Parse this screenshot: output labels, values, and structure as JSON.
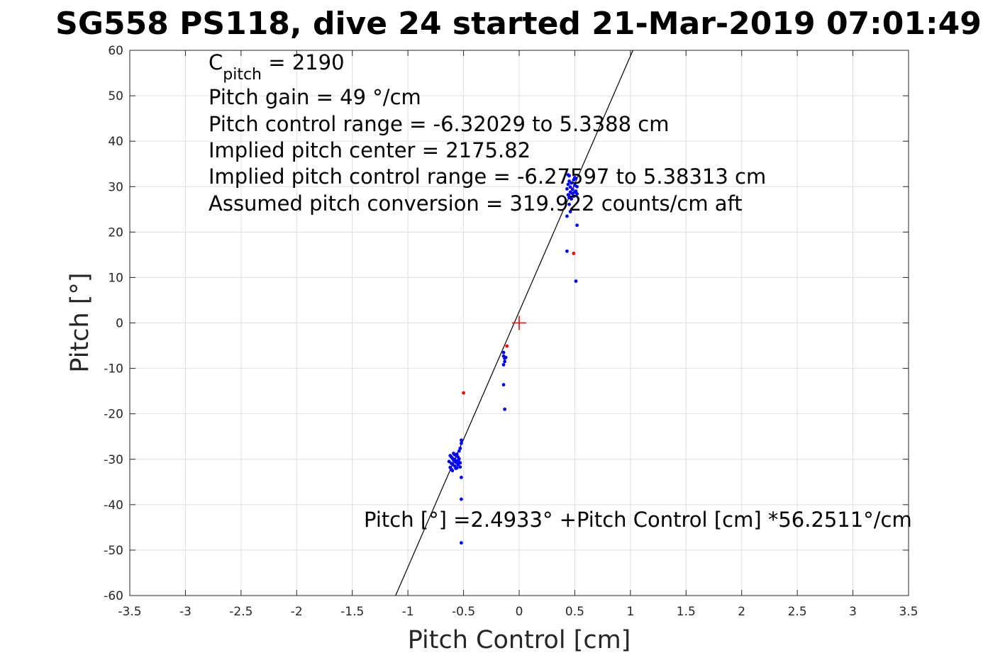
{
  "chart_data": {
    "type": "scatter",
    "title": "SG558 PS118, dive 24 started 21-Mar-2019 07:01:49",
    "xlabel": "Pitch Control [cm]",
    "ylabel": "Pitch [°]",
    "xlim": [
      -3.5,
      3.5
    ],
    "ylim": [
      -60,
      60
    ],
    "xticks": [
      -3.5,
      -3,
      -2.5,
      -2,
      -1.5,
      -1,
      -0.5,
      0,
      0.5,
      1,
      1.5,
      2,
      2.5,
      3,
      3.5
    ],
    "xtick_labels": [
      "-3.5",
      "-3",
      "-2.5",
      "-2",
      "-1.5",
      "-1",
      "-0.5",
      "0",
      "0.5",
      "1",
      "1.5",
      "2",
      "2.5",
      "3",
      "3.5"
    ],
    "yticks": [
      60,
      50,
      40,
      30,
      20,
      10,
      0,
      -10,
      -20,
      -30,
      -40,
      -50,
      -60
    ],
    "ytick_labels": [
      "60",
      "50",
      "40",
      "30",
      "20",
      "10",
      "0",
      "-10",
      "-20",
      "-30",
      "-40",
      "-50",
      "-60"
    ],
    "grid": true,
    "annotations": {
      "c_pitch_symbol": "C",
      "c_pitch_subscript": "pitch",
      "c_pitch_value": " = 2190",
      "pitch_gain": "Pitch gain = 49 °/cm",
      "pitch_control_range": "Pitch control range = -6.32029 to 5.3388 cm",
      "implied_center": "Implied pitch center = 2175.82",
      "implied_range": "Implied pitch control range = -6.27597 to 5.38313 cm",
      "conversion": "Assumed pitch conversion = 319.922 counts/cm aft",
      "fit_equation": "Pitch [°] =2.4933° +Pitch Control [cm] *56.2511°/cm"
    },
    "fit_line": {
      "intercept": 2.4933,
      "slope": 56.2511,
      "color": "#000000"
    },
    "center_marker": {
      "x": 0,
      "y": 0,
      "color": "#ff0000"
    },
    "series": [
      {
        "color": "#0000ff",
        "points": [
          [
            -0.63,
            -30.5
          ],
          [
            -0.62,
            -31.8
          ],
          [
            -0.62,
            -29.2
          ],
          [
            -0.61,
            -30.9
          ],
          [
            -0.61,
            -32.2
          ],
          [
            -0.6,
            -29.8
          ],
          [
            -0.6,
            -31.1
          ],
          [
            -0.59,
            -30.2
          ],
          [
            -0.59,
            -28.7
          ],
          [
            -0.58,
            -31.5
          ],
          [
            -0.58,
            -30.0
          ],
          [
            -0.57,
            -29.1
          ],
          [
            -0.57,
            -32.0
          ],
          [
            -0.56,
            -30.4
          ],
          [
            -0.56,
            -28.9
          ],
          [
            -0.55,
            -31.2
          ],
          [
            -0.55,
            -29.5
          ],
          [
            -0.54,
            -30.6
          ],
          [
            -0.54,
            -28.2
          ],
          [
            -0.53,
            -31.7
          ],
          [
            -0.53,
            -27.6
          ],
          [
            -0.52,
            -26.5
          ],
          [
            -0.52,
            -25.8
          ],
          [
            -0.61,
            -29.5
          ],
          [
            -0.6,
            -32.5
          ],
          [
            -0.58,
            -29.0
          ],
          [
            -0.56,
            -31.9
          ],
          [
            -0.54,
            -29.9
          ],
          [
            -0.53,
            -30.8
          ],
          [
            -0.57,
            -30.7
          ],
          [
            -0.52,
            -34.0
          ],
          [
            -0.52,
            -38.8
          ],
          [
            -0.52,
            -48.4
          ],
          [
            -0.14,
            -6.5
          ],
          [
            -0.14,
            -7.3
          ],
          [
            -0.13,
            -7.8
          ],
          [
            -0.13,
            -8.5
          ],
          [
            -0.14,
            -9.2
          ],
          [
            -0.12,
            -7.6
          ],
          [
            -0.14,
            -13.6
          ],
          [
            -0.13,
            -19.0
          ],
          [
            0.43,
            29.5
          ],
          [
            0.44,
            28.2
          ],
          [
            0.44,
            30.5
          ],
          [
            0.45,
            27.6
          ],
          [
            0.45,
            31.2
          ],
          [
            0.46,
            28.8
          ],
          [
            0.46,
            29.9
          ],
          [
            0.47,
            27.3
          ],
          [
            0.47,
            30.8
          ],
          [
            0.48,
            28.5
          ],
          [
            0.48,
            29.4
          ],
          [
            0.49,
            31.5
          ],
          [
            0.49,
            27.9
          ],
          [
            0.5,
            28.8
          ],
          [
            0.5,
            30.3
          ],
          [
            0.51,
            29.0
          ],
          [
            0.51,
            31.8
          ],
          [
            0.52,
            28.4
          ],
          [
            0.52,
            30.0
          ],
          [
            0.44,
            32.6
          ],
          [
            0.45,
            26.1
          ],
          [
            0.46,
            24.5
          ],
          [
            0.45,
            32.4
          ],
          [
            0.5,
            32.0
          ],
          [
            0.43,
            23.5
          ],
          [
            0.43,
            15.8
          ],
          [
            0.52,
            21.5
          ],
          [
            0.51,
            9.2
          ]
        ]
      },
      {
        "color": "#ff0000",
        "points": [
          [
            -0.5,
            -15.4
          ],
          [
            0.49,
            15.3
          ],
          [
            -0.11,
            -5.1
          ]
        ]
      }
    ]
  }
}
